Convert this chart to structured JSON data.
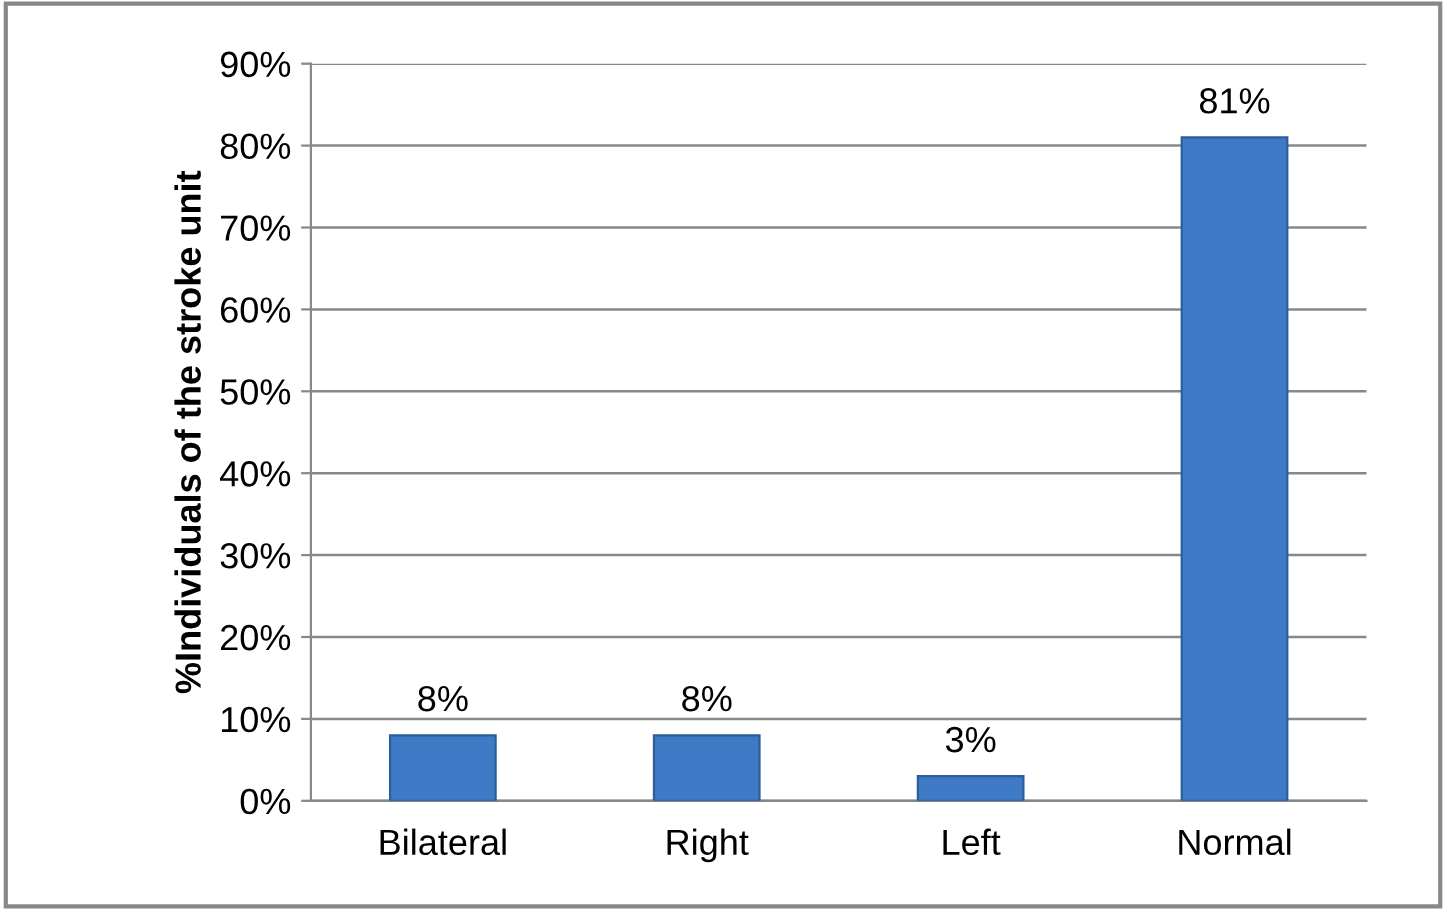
{
  "chart_data": {
    "type": "bar",
    "ylabel": "%Individuals of the stroke unit",
    "categories": [
      "Bilateral",
      "Right",
      "Left",
      "Normal"
    ],
    "values": [
      8,
      8,
      3,
      81
    ],
    "value_labels": [
      "8%",
      "8%",
      "3%",
      "81%"
    ],
    "color": "#3f7ac6",
    "ylim": [
      0,
      90
    ],
    "yticks": [
      {
        "value": 0,
        "label": "0%"
      },
      {
        "value": 10,
        "label": "10%"
      },
      {
        "value": 20,
        "label": "20%"
      },
      {
        "value": 30,
        "label": "30%"
      },
      {
        "value": 40,
        "label": "40%"
      },
      {
        "value": 50,
        "label": "50%"
      },
      {
        "value": 60,
        "label": "60%"
      },
      {
        "value": 70,
        "label": "70%"
      },
      {
        "value": 80,
        "label": "80%"
      },
      {
        "value": 90,
        "label": "90%"
      }
    ],
    "grid": "y",
    "legend": false
  }
}
